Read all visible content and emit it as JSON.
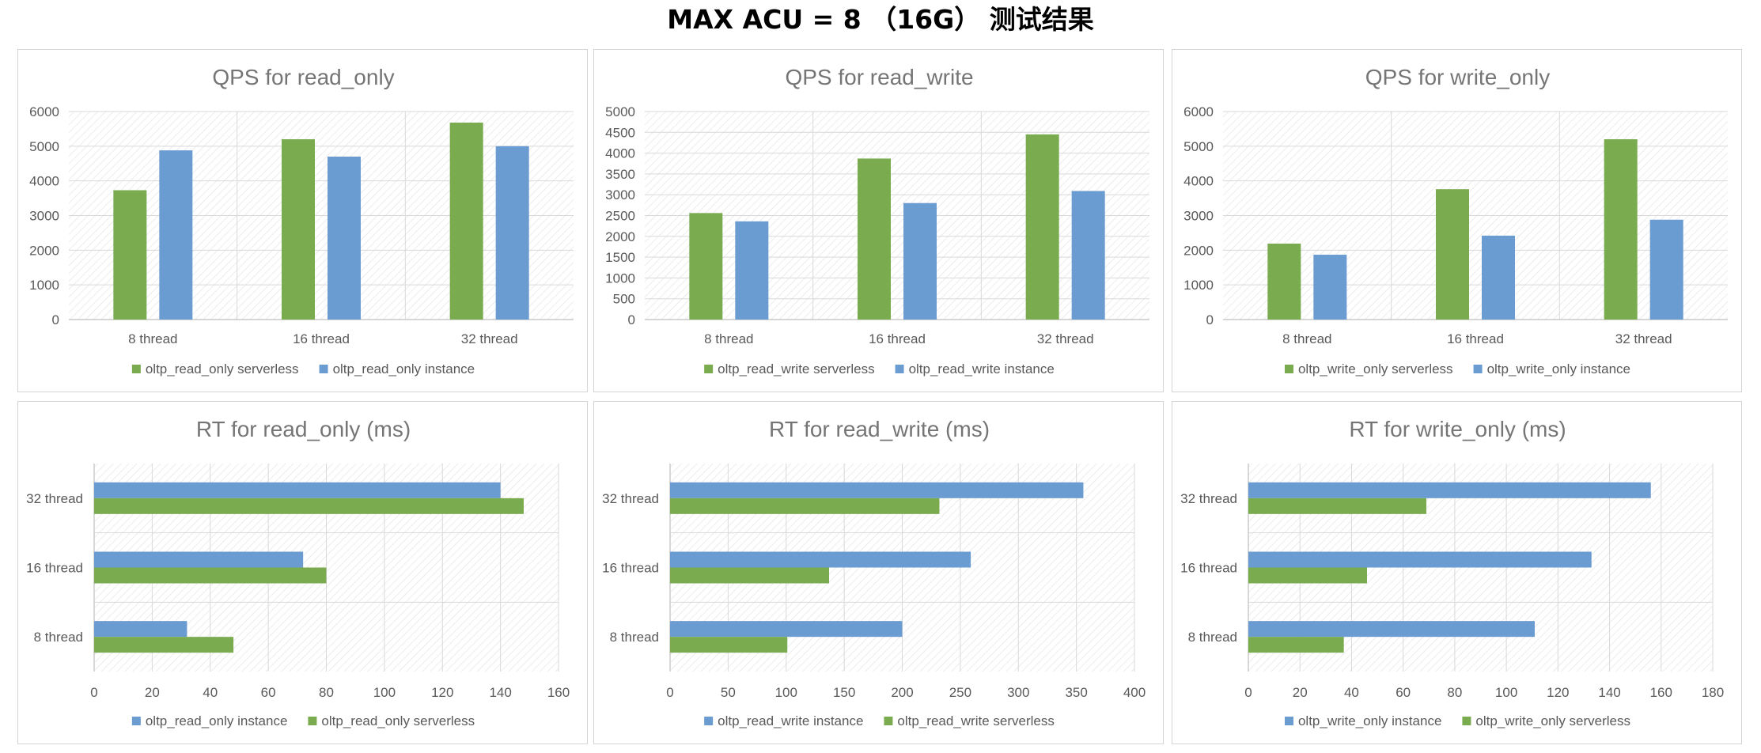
{
  "page_title": "MAX ACU = 8 （16G） 测试结果",
  "colors": {
    "serverless": "#7aab4f",
    "instance": "#6a9bd1",
    "grid": "#d9d9d9",
    "text": "#595959",
    "title": "#757575"
  },
  "chart_data": [
    {
      "type": "bar",
      "title": "QPS for read_only",
      "categories": [
        "8 thread",
        "16 thread",
        "32 thread"
      ],
      "ylim": [
        0,
        6000
      ],
      "yticks": [
        0,
        1000,
        2000,
        3000,
        4000,
        5000,
        6000
      ],
      "series": [
        {
          "name": "oltp_read_only serverless",
          "key": "serverless",
          "values": [
            3730,
            5200,
            5680
          ]
        },
        {
          "name": "oltp_read_only instance",
          "key": "instance",
          "values": [
            4880,
            4700,
            5000
          ]
        }
      ]
    },
    {
      "type": "bar",
      "title": "QPS for read_write",
      "categories": [
        "8 thread",
        "16 thread",
        "32 thread"
      ],
      "ylim": [
        0,
        5000
      ],
      "yticks": [
        0,
        500,
        1000,
        1500,
        2000,
        2500,
        3000,
        3500,
        4000,
        4500,
        5000
      ],
      "series": [
        {
          "name": "oltp_read_write serverless",
          "key": "serverless",
          "values": [
            2560,
            3870,
            4450
          ]
        },
        {
          "name": "oltp_read_write instance",
          "key": "instance",
          "values": [
            2360,
            2800,
            3090
          ]
        }
      ]
    },
    {
      "type": "bar",
      "title": "QPS for write_only",
      "categories": [
        "8 thread",
        "16 thread",
        "32 thread"
      ],
      "ylim": [
        0,
        6000
      ],
      "yticks": [
        0,
        1000,
        2000,
        3000,
        4000,
        5000,
        6000
      ],
      "series": [
        {
          "name": "oltp_write_only serverless",
          "key": "serverless",
          "values": [
            2190,
            3760,
            5200
          ]
        },
        {
          "name": "oltp_write_only instance",
          "key": "instance",
          "values": [
            1870,
            2420,
            2880
          ]
        }
      ]
    },
    {
      "type": "bar",
      "orientation": "horizontal",
      "title": "RT for read_only (ms)",
      "categories": [
        "8 thread",
        "16 thread",
        "32 thread"
      ],
      "xlim": [
        0,
        160
      ],
      "xticks": [
        0,
        20,
        40,
        60,
        80,
        100,
        120,
        140,
        160
      ],
      "series": [
        {
          "name": "oltp_read_only instance",
          "key": "instance",
          "values": [
            32,
            72,
            140
          ]
        },
        {
          "name": "oltp_read_only serverless",
          "key": "serverless",
          "values": [
            48,
            80,
            148
          ]
        }
      ]
    },
    {
      "type": "bar",
      "orientation": "horizontal",
      "title": "RT for read_write (ms)",
      "categories": [
        "8 thread",
        "16 thread",
        "32 thread"
      ],
      "xlim": [
        0,
        400
      ],
      "xticks": [
        0,
        50,
        100,
        150,
        200,
        250,
        300,
        350,
        400
      ],
      "series": [
        {
          "name": "oltp_read_write instance",
          "key": "instance",
          "values": [
            200,
            259,
            356
          ]
        },
        {
          "name": "oltp_read_write serverless",
          "key": "serverless",
          "values": [
            101,
            137,
            232
          ]
        }
      ]
    },
    {
      "type": "bar",
      "orientation": "horizontal",
      "title": "RT for write_only (ms)",
      "categories": [
        "8 thread",
        "16 thread",
        "32 thread"
      ],
      "xlim": [
        0,
        180
      ],
      "xticks": [
        0,
        20,
        40,
        60,
        80,
        100,
        120,
        140,
        160,
        180
      ],
      "series": [
        {
          "name": "oltp_write_only instance",
          "key": "instance",
          "values": [
            111,
            133,
            156
          ]
        },
        {
          "name": "oltp_write_only serverless",
          "key": "serverless",
          "values": [
            37,
            46,
            69
          ]
        }
      ]
    }
  ]
}
